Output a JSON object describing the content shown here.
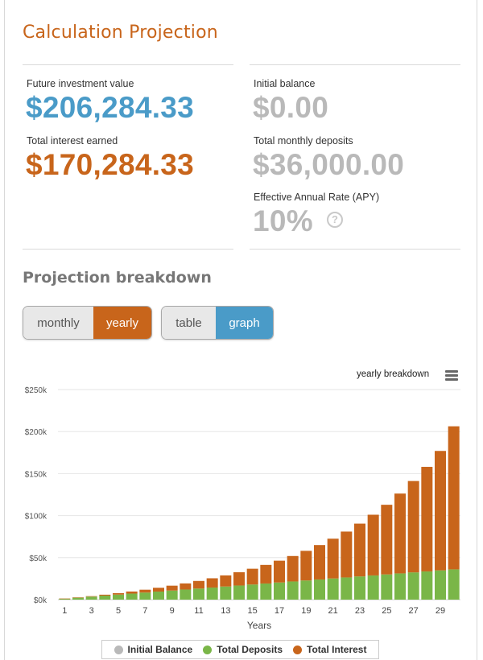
{
  "header": {
    "title": "Calculation Projection"
  },
  "summary": {
    "future_value_label": "Future investment value",
    "future_value": "$206,284.33",
    "interest_label": "Total interest earned",
    "interest": "$170,284.33",
    "initial_label": "Initial balance",
    "initial": "$0.00",
    "deposits_label": "Total monthly deposits",
    "deposits": "$36,000.00",
    "apy_label": "Effective Annual Rate (APY)",
    "apy": "10%",
    "help_glyph": "?"
  },
  "breakdown": {
    "title": "Projection breakdown",
    "period_toggle": {
      "monthly": "monthly",
      "yearly": "yearly",
      "selected": "yearly"
    },
    "view_toggle": {
      "table": "table",
      "graph": "graph",
      "selected": "graph"
    },
    "chart_caption": "yearly breakdown"
  },
  "colors": {
    "orange": "#c8651b",
    "blue": "#4a9bc8",
    "green": "#7ab648",
    "gray": "#b9b9b9"
  },
  "chart_data": {
    "type": "bar",
    "stacked": true,
    "xlabel": "Years",
    "ylabel": "",
    "ylim": [
      0,
      250000
    ],
    "yticks": [
      0,
      50000,
      100000,
      150000,
      200000,
      250000
    ],
    "ytick_labels": [
      "$0k",
      "$50k",
      "$100k",
      "$150k",
      "$200k",
      "$250k"
    ],
    "xtick_labels": [
      "1",
      "3",
      "5",
      "7",
      "9",
      "11",
      "13",
      "15",
      "17",
      "19",
      "21",
      "23",
      "25",
      "27",
      "29"
    ],
    "categories": [
      1,
      2,
      3,
      4,
      5,
      6,
      7,
      8,
      9,
      10,
      11,
      12,
      13,
      14,
      15,
      16,
      17,
      18,
      19,
      20,
      21,
      22,
      23,
      24,
      25,
      26,
      27,
      28,
      29,
      30
    ],
    "grid": true,
    "legend_position": "bottom",
    "series": [
      {
        "name": "Initial Balance",
        "color": "#b9b9b9",
        "values": [
          0,
          0,
          0,
          0,
          0,
          0,
          0,
          0,
          0,
          0,
          0,
          0,
          0,
          0,
          0,
          0,
          0,
          0,
          0,
          0,
          0,
          0,
          0,
          0,
          0,
          0,
          0,
          0,
          0,
          0
        ]
      },
      {
        "name": "Total Deposits",
        "color": "#7ab648",
        "values": [
          1200,
          2400,
          3600,
          4800,
          6000,
          7200,
          8400,
          9600,
          10800,
          12000,
          13200,
          14400,
          15600,
          16800,
          18000,
          19200,
          20400,
          21600,
          22800,
          24000,
          25200,
          26400,
          27600,
          28800,
          30000,
          31200,
          32400,
          33600,
          34800,
          36000
        ]
      },
      {
        "name": "Total Interest",
        "color": "#c8651b",
        "values": [
          57,
          252,
          541,
          1082,
          1715,
          2471,
          3406,
          4526,
          5809,
          7324,
          9039,
          11017,
          13267,
          15866,
          18767,
          22141,
          25944,
          30315,
          35269,
          40962,
          47312,
          54599,
          62857,
          72256,
          82892,
          95030,
          108770,
          124419,
          142173,
          170284
        ]
      }
    ]
  }
}
